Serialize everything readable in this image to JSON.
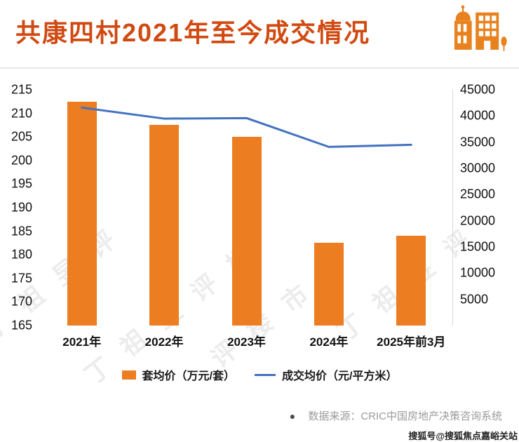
{
  "header": {
    "title": "共康四村2021年至今成交情况",
    "icon": "buildings-icon"
  },
  "chart_data": {
    "type": "bar",
    "title": "共康四村2021年至今成交情况",
    "categories": [
      "2021年",
      "2022年",
      "2023年",
      "2024年",
      "2025年前3月"
    ],
    "series": [
      {
        "name": "套均价（万元/套）",
        "type": "bar",
        "axis": "left",
        "color": "#EC7D21",
        "values": [
          212.5,
          207.5,
          205,
          182.5,
          184
        ]
      },
      {
        "name": "成交均价（元/平方米）",
        "type": "line",
        "axis": "right",
        "color": "#4372C0",
        "values": [
          41600,
          39500,
          39600,
          34100,
          34500
        ]
      }
    ],
    "left_axis": {
      "min": 165,
      "max": 215,
      "step": 5,
      "ticks": [
        215,
        210,
        205,
        200,
        195,
        190,
        185,
        180,
        175,
        170,
        165
      ]
    },
    "right_axis": {
      "min": 0,
      "max": 45000,
      "step": 5000,
      "ticks": [
        45000,
        40000,
        35000,
        30000,
        25000,
        20000,
        15000,
        10000,
        5000
      ]
    },
    "grid": false,
    "legend_position": "bottom"
  },
  "legend": {
    "bar_label": "套均价（万元/套）",
    "line_label": "成交均价（元/平方米）"
  },
  "footer": {
    "bullet": "●",
    "source": "数据来源：CRIC中国房地产决策咨询系统",
    "site_credit": "搜狐号@搜狐焦点嘉峪关站"
  },
  "background_watermark": {
    "lines": [
      "丁祖昱评",
      "丁祖昱评楼",
      "评楼市",
      "丁祖昱评"
    ]
  },
  "colors": {
    "title": "#D04A12",
    "bar": "#EC7D21",
    "line": "#4372C0",
    "icon": "#E8821E",
    "axis_text": "#111111",
    "source_text": "#9b9b9b"
  }
}
